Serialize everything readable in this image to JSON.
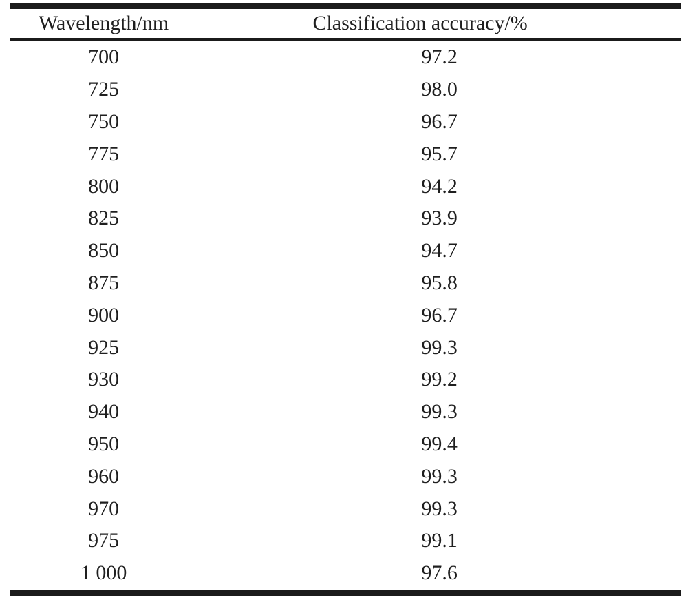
{
  "table": {
    "columns": [
      {
        "label": "Wavelength/nm"
      },
      {
        "label": "Classification accuracy/%"
      }
    ],
    "rows": [
      {
        "wavelength": "700",
        "accuracy": "97.2"
      },
      {
        "wavelength": "725",
        "accuracy": "98.0"
      },
      {
        "wavelength": "750",
        "accuracy": "96.7"
      },
      {
        "wavelength": "775",
        "accuracy": "95.7"
      },
      {
        "wavelength": "800",
        "accuracy": "94.2"
      },
      {
        "wavelength": "825",
        "accuracy": "93.9"
      },
      {
        "wavelength": "850",
        "accuracy": "94.7"
      },
      {
        "wavelength": "875",
        "accuracy": "95.8"
      },
      {
        "wavelength": "900",
        "accuracy": "96.7"
      },
      {
        "wavelength": "925",
        "accuracy": "99.3"
      },
      {
        "wavelength": "930",
        "accuracy": "99.2"
      },
      {
        "wavelength": "940",
        "accuracy": "99.3"
      },
      {
        "wavelength": "950",
        "accuracy": "99.4"
      },
      {
        "wavelength": "960",
        "accuracy": "99.3"
      },
      {
        "wavelength": "970",
        "accuracy": "99.3"
      },
      {
        "wavelength": "975",
        "accuracy": "99.1"
      },
      {
        "wavelength": "1 000",
        "accuracy": "97.6"
      }
    ]
  },
  "chart_data": {
    "type": "table",
    "title": "",
    "columns": [
      "Wavelength/nm",
      "Classification accuracy/%"
    ],
    "x": [
      700,
      725,
      750,
      775,
      800,
      825,
      850,
      875,
      900,
      925,
      930,
      940,
      950,
      960,
      970,
      975,
      1000
    ],
    "series": [
      {
        "name": "Classification accuracy/%",
        "values": [
          97.2,
          98.0,
          96.7,
          95.7,
          94.2,
          93.9,
          94.7,
          95.8,
          96.7,
          99.3,
          99.2,
          99.3,
          99.4,
          99.3,
          99.3,
          99.1,
          97.6
        ]
      }
    ]
  },
  "colors": {
    "background": "#ffffff",
    "text": "#1f1f1f",
    "rule": "#1b1b1b"
  }
}
